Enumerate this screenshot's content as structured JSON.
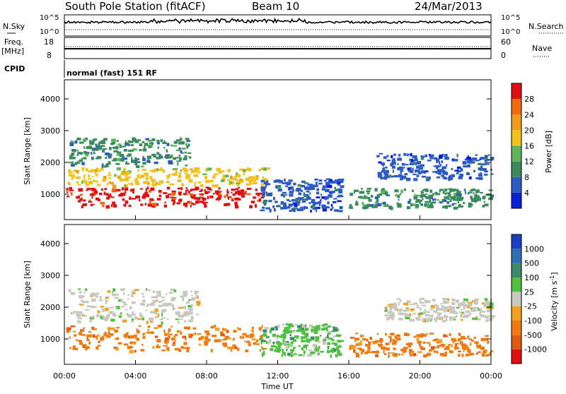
{
  "header": {
    "station": "South Pole Station (fitACF)",
    "beam": "Beam 10",
    "date": "24/Mar/2013"
  },
  "panels": {
    "nsky": {
      "label": "N.Sky",
      "tick_top": "10^5",
      "tick_bottom": "10^0"
    },
    "nsearch": {
      "label": "N.Search",
      "tick_top": "10^5",
      "tick_bottom": "10^0"
    },
    "freq": {
      "label_line1": "Freq.",
      "label_line2": "[MHz]",
      "tick_top": "18",
      "tick_bottom": "8"
    },
    "nave": {
      "label": "Nave",
      "tick_top": "60",
      "tick_bottom": "0"
    },
    "cpid": {
      "label": "CPID",
      "value": "normal (fast) 151 RF"
    }
  },
  "axes": {
    "y_label": "Slant Range [km]",
    "x_label": "Time UT",
    "y_ticks": [
      1000,
      2000,
      3000,
      4000
    ],
    "x_ticks": [
      "00:00",
      "04:00",
      "08:00",
      "12:00",
      "16:00",
      "20:00",
      "00:00"
    ],
    "y_range": [
      200,
      4600
    ]
  },
  "power_scale": {
    "label": "Power [dB]",
    "ticks": [
      "4",
      "8",
      "12",
      "16",
      "20",
      "24",
      "28"
    ],
    "colors": [
      "#0a1fd8",
      "#2d5bc4",
      "#3a8a5c",
      "#5fb55c",
      "#f2c21b",
      "#f29a1b",
      "#f26a10",
      "#e01010"
    ]
  },
  "velocity_scale": {
    "label": "Velocity [m s",
    "label_sup": "-1",
    "label_end": "]",
    "ticks": [
      "1000",
      "500",
      "100",
      "25",
      "-25",
      "-100",
      "-500",
      "-1000"
    ],
    "colors": [
      "#1a3fc0",
      "#2e6fb0",
      "#3d8a6a",
      "#4fc040",
      "#c8c8c0",
      "#f2a020",
      "#f07a10",
      "#e05a10",
      "#e01010"
    ]
  },
  "chart_data": [
    {
      "type": "heatmap",
      "name": "power",
      "x_range_hours": [
        0,
        24
      ],
      "y_range_km": [
        200,
        4600
      ],
      "regions": [
        {
          "t": [
            0.1,
            11.2
          ],
          "r": [
            650,
            1250
          ],
          "level": "28"
        },
        {
          "t": [
            0.1,
            11.4
          ],
          "r": [
            1300,
            1850
          ],
          "level": "16"
        },
        {
          "t": [
            0.2,
            7.0
          ],
          "r": [
            1900,
            2800
          ],
          "level": "8"
        },
        {
          "t": [
            11.0,
            15.5
          ],
          "r": [
            500,
            1500
          ],
          "level": "4"
        },
        {
          "t": [
            16.0,
            24.0
          ],
          "r": [
            600,
            1200
          ],
          "level": "8"
        },
        {
          "t": [
            17.5,
            24.0
          ],
          "r": [
            1500,
            2300
          ],
          "level": "4"
        }
      ]
    },
    {
      "type": "heatmap",
      "name": "velocity",
      "x_range_hours": [
        0,
        24
      ],
      "y_range_km": [
        200,
        4600
      ],
      "regions": [
        {
          "t": [
            0.1,
            11.2
          ],
          "r": [
            650,
            1450
          ],
          "level": "-100"
        },
        {
          "t": [
            0.2,
            7.5
          ],
          "r": [
            1550,
            2600
          ],
          "level": "25"
        },
        {
          "t": [
            11.0,
            15.5
          ],
          "r": [
            500,
            1500
          ],
          "level": "100"
        },
        {
          "t": [
            16.0,
            24.0
          ],
          "r": [
            500,
            1200
          ],
          "level": "-100"
        },
        {
          "t": [
            18.0,
            24.0
          ],
          "r": [
            1600,
            2300
          ],
          "level": "25"
        }
      ]
    }
  ]
}
